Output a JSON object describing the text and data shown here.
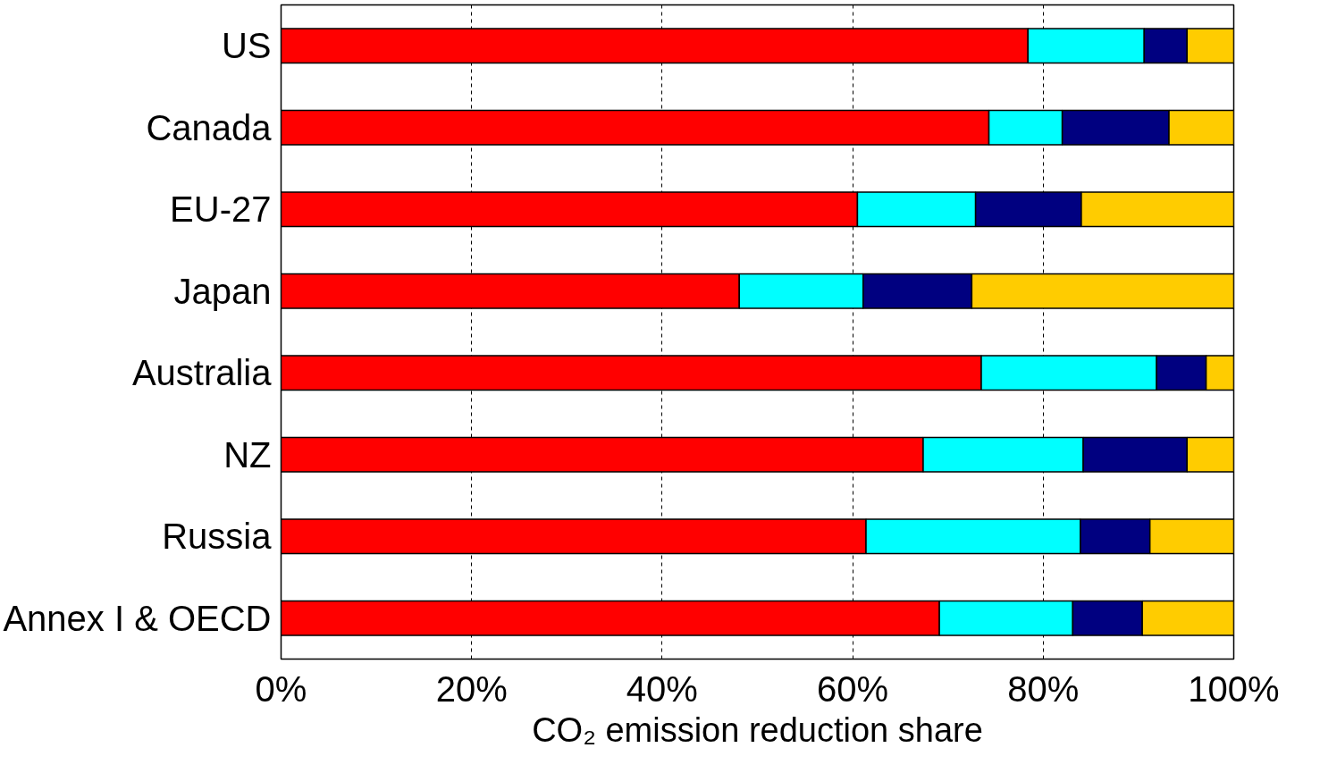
{
  "chart_data": {
    "type": "bar",
    "orientation": "horizontal",
    "stacked": true,
    "xlabel": "CO₂ emission reduction share",
    "categories": [
      "US",
      "Canada",
      "EU-27",
      "Japan",
      "Australia",
      "NZ",
      "Russia",
      "Annex I & OECD"
    ],
    "series": [
      {
        "color": "#ff0000",
        "values": [
          78.4,
          74.3,
          60.5,
          48.1,
          73.5,
          67.4,
          61.4,
          69.1
        ]
      },
      {
        "color": "#00ffff",
        "values": [
          12.2,
          7.7,
          12.4,
          13.0,
          18.4,
          16.8,
          22.5,
          14.0
        ]
      },
      {
        "color": "#000080",
        "values": [
          4.5,
          11.2,
          11.1,
          11.4,
          5.2,
          10.9,
          7.3,
          7.3
        ]
      },
      {
        "color": "#ffcc00",
        "values": [
          4.9,
          6.8,
          16.0,
          27.5,
          2.9,
          4.9,
          8.8,
          9.6
        ]
      }
    ],
    "xlim": [
      0,
      100
    ],
    "xticks": [
      {
        "value": 0,
        "label": "0%"
      },
      {
        "value": 20,
        "label": "20%"
      },
      {
        "value": 40,
        "label": "40%"
      },
      {
        "value": 60,
        "label": "60%"
      },
      {
        "value": 80,
        "label": "80%"
      },
      {
        "value": 100,
        "label": "100%"
      }
    ],
    "grid": "x"
  }
}
